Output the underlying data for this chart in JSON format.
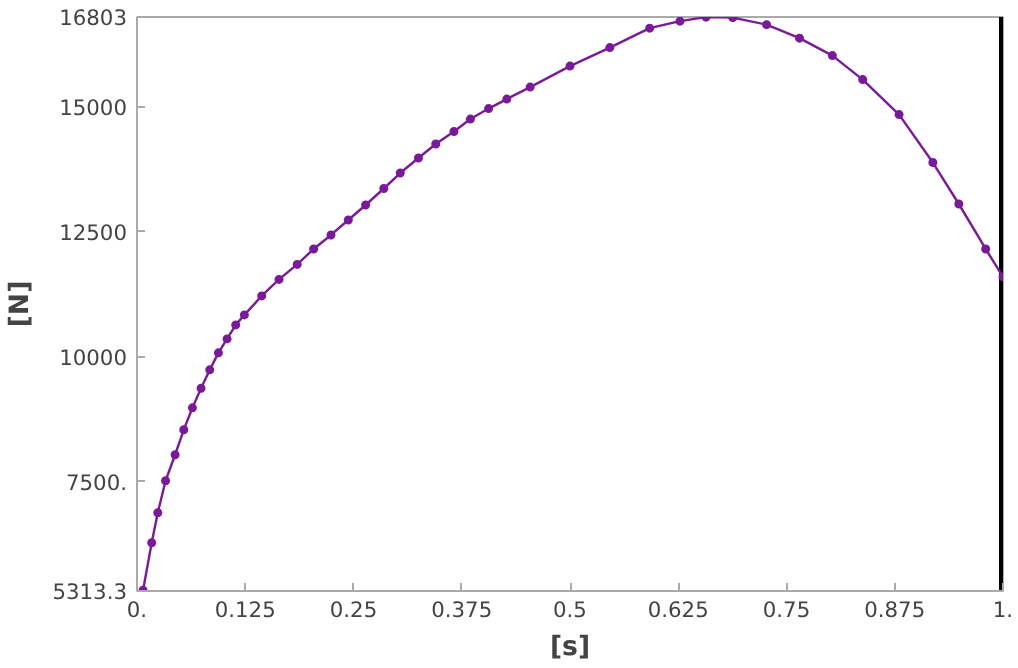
{
  "chart_data": {
    "type": "line",
    "xlabel": "[s]",
    "ylabel": "[N]",
    "xlim": [
      0,
      1
    ],
    "ylim": [
      5313.3,
      16803
    ],
    "xticks": [
      {
        "value": 0,
        "label": "0."
      },
      0.125,
      0.25,
      0.375,
      0.5,
      0.625,
      0.75,
      0.875,
      {
        "value": 1,
        "label": "1."
      }
    ],
    "yticks": [
      5313.3,
      {
        "value": 7500,
        "label": "7500."
      },
      10000,
      12500,
      15000,
      16803
    ],
    "grid": false,
    "marker": "circle",
    "line_style": "solid",
    "ref_lines": [
      {
        "axis": "x",
        "value": 1,
        "color": "#000000"
      }
    ],
    "series": [
      {
        "color": "#7a1a9a",
        "x": [
          0.007,
          0.017,
          0.024,
          0.033,
          0.044,
          0.054,
          0.064,
          0.074,
          0.084,
          0.094,
          0.104,
          0.114,
          0.124,
          0.144,
          0.164,
          0.185,
          0.204,
          0.224,
          0.244,
          0.264,
          0.285,
          0.304,
          0.325,
          0.345,
          0.366,
          0.385,
          0.406,
          0.427,
          0.454,
          0.5,
          0.546,
          0.592,
          0.627,
          0.657,
          0.688,
          0.727,
          0.765,
          0.803,
          0.838,
          0.88,
          0.919,
          0.949,
          0.98,
          1.0
        ],
        "values": [
          5330,
          6280,
          6880,
          7520,
          8040,
          8540,
          8980,
          9370,
          9740,
          10080,
          10360,
          10640,
          10840,
          11220,
          11550,
          11850,
          12160,
          12440,
          12740,
          13040,
          13370,
          13680,
          13980,
          14260,
          14510,
          14760,
          14970,
          15160,
          15400,
          15820,
          16190,
          16580,
          16720,
          16800,
          16790,
          16650,
          16380,
          16030,
          15550,
          14850,
          13890,
          13060,
          12160,
          11600
        ]
      }
    ]
  }
}
